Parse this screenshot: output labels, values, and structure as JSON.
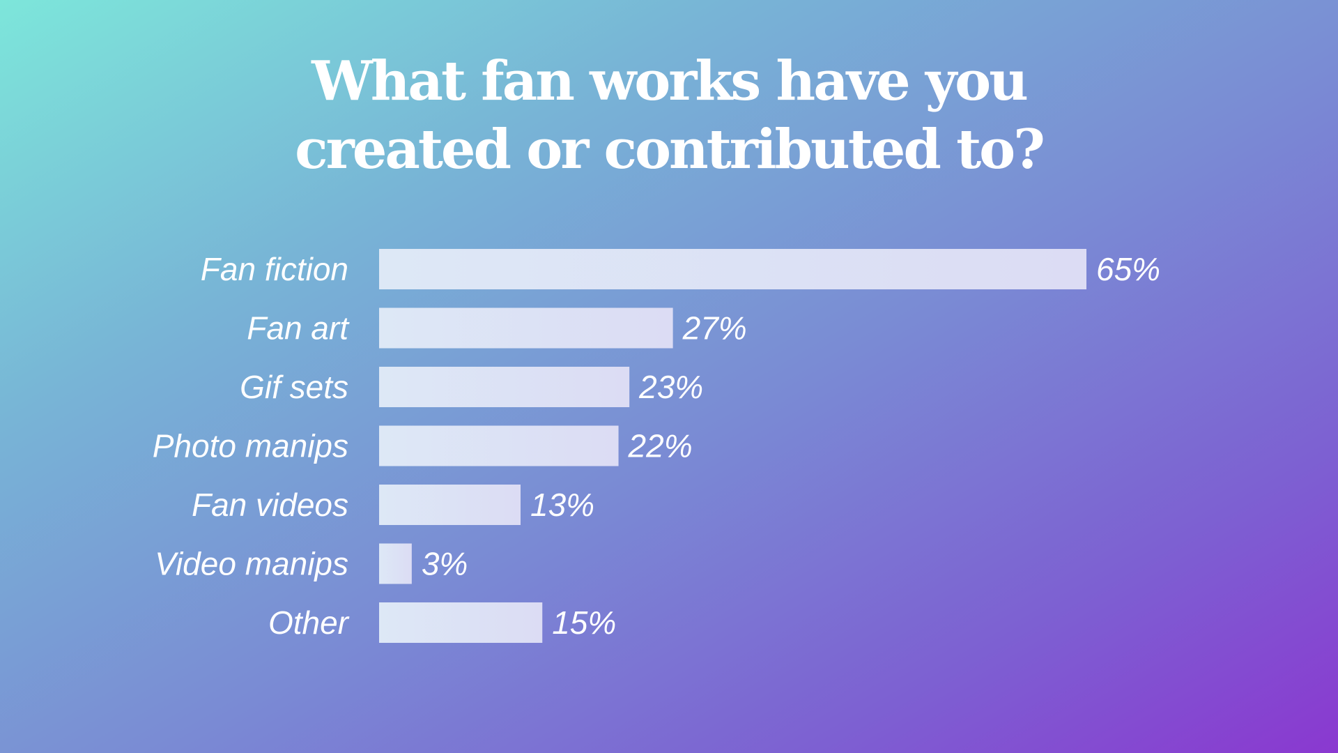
{
  "title": "What fan works have you\ncreated or contributed to?",
  "chart_data": {
    "type": "bar",
    "orientation": "horizontal",
    "title": "What fan works have you\ncreated or contributed to?",
    "categories": [
      "Fan fiction",
      "Fan art",
      "Gif sets",
      "Photo manips",
      "Fan videos",
      "Video manips",
      "Other"
    ],
    "values": [
      65,
      27,
      23,
      22,
      13,
      3,
      15
    ],
    "value_labels": [
      "65%",
      "27%",
      "23%",
      "22%",
      "13%",
      "3%",
      "15%"
    ],
    "unit": "%",
    "xlim": [
      0,
      65
    ],
    "grid": false,
    "legend": "none",
    "bar_color": "#dde6f6"
  }
}
